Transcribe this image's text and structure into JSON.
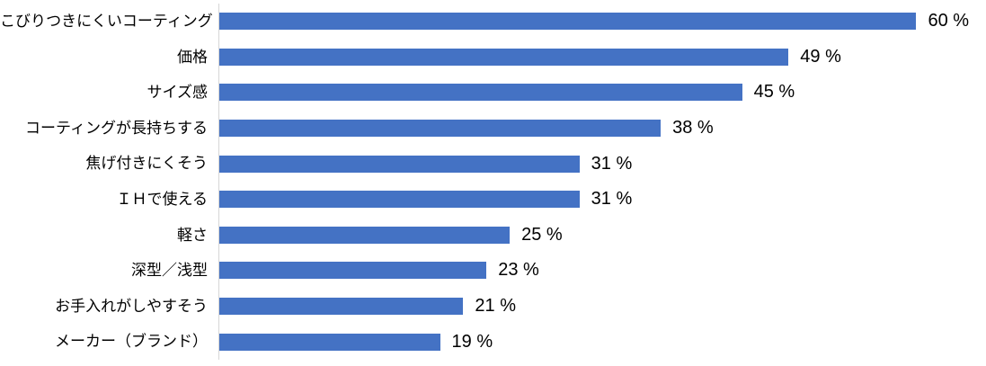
{
  "chart_data": {
    "type": "bar",
    "orientation": "horizontal",
    "title": "",
    "xlabel": "",
    "ylabel": "",
    "grid": false,
    "legend": false,
    "xlim": [
      0,
      66
    ],
    "bar_color": "#4472C4",
    "axis_line_color": "#d6d6d6",
    "label_color": "#000000",
    "value_label_position": "outside-end",
    "categories": [
      "こびりつきにくいコーティング",
      "価格",
      "サイズ感",
      "コーティングが長持ちする",
      "焦げ付きにくそう",
      "ＩＨで使える",
      "軽さ",
      "深型／浅型",
      "お手入れがしやすそう",
      "メーカー（ブランド）"
    ],
    "values": [
      60,
      49,
      45,
      38,
      31,
      31,
      25,
      23,
      21,
      19
    ],
    "value_labels": [
      "60 %",
      "49 %",
      "45 %",
      "38 %",
      "31 %",
      "31 %",
      "25 %",
      "23 %",
      "21 %",
      "19 %"
    ]
  }
}
